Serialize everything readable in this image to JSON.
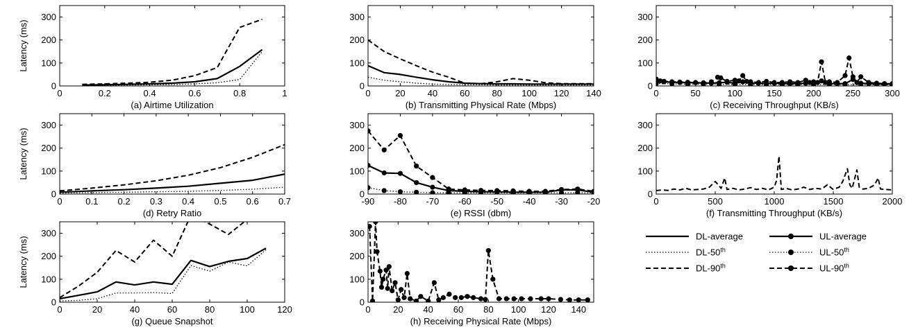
{
  "ylabel": "Latency (ms)",
  "legend": {
    "placement": "bottom-right",
    "entries": [
      {
        "name": "DL-average",
        "style": "solid",
        "marker": false
      },
      {
        "name": "UL-average",
        "style": "solid",
        "marker": true
      },
      {
        "name": "DL-50",
        "sup": "th",
        "style": "dotted",
        "marker": false
      },
      {
        "name": "UL-50",
        "sup": "th",
        "style": "dotted",
        "marker": true
      },
      {
        "name": "DL-90",
        "sup": "th",
        "style": "dashed",
        "marker": false
      },
      {
        "name": "UL-90",
        "sup": "th",
        "style": "dashed",
        "marker": true
      }
    ]
  },
  "chart_data": [
    {
      "type": "line",
      "caption": "(a) Airtime Utilization",
      "xlim": [
        0,
        1
      ],
      "ylim": [
        0,
        350
      ],
      "xticks": [
        "0",
        "0.2",
        "0.4",
        "0.6",
        "0.8",
        "1"
      ],
      "yticks": [
        "0",
        "100",
        "200",
        "300"
      ],
      "grid": false,
      "series": [
        {
          "name": "DL-average",
          "style": "solid",
          "marker": false,
          "x": [
            0.1,
            0.2,
            0.3,
            0.4,
            0.5,
            0.6,
            0.7,
            0.8,
            0.9
          ],
          "y": [
            4,
            5,
            7,
            9,
            12,
            18,
            32,
            85,
            158
          ]
        },
        {
          "name": "DL-50",
          "style": "dotted",
          "marker": false,
          "x": [
            0.1,
            0.2,
            0.3,
            0.4,
            0.5,
            0.6,
            0.7,
            0.8,
            0.9
          ],
          "y": [
            2,
            3,
            4,
            5,
            6,
            9,
            14,
            28,
            150
          ]
        },
        {
          "name": "DL-90",
          "style": "dashed",
          "marker": false,
          "x": [
            0.1,
            0.2,
            0.3,
            0.4,
            0.5,
            0.6,
            0.7,
            0.8,
            0.9
          ],
          "y": [
            7,
            9,
            12,
            16,
            25,
            45,
            80,
            255,
            290
          ]
        }
      ]
    },
    {
      "type": "line",
      "caption": "(b) Transmitting Physical Rate (Mbps)",
      "xlim": [
        0,
        140
      ],
      "ylim": [
        0,
        350
      ],
      "xticks": [
        "0",
        "20",
        "40",
        "60",
        "80",
        "100",
        "120",
        "140"
      ],
      "yticks": [
        "0",
        "100",
        "200",
        "300"
      ],
      "grid": false,
      "series": [
        {
          "name": "DL-average",
          "style": "solid",
          "marker": false,
          "x": [
            0,
            10,
            20,
            30,
            40,
            50,
            60,
            70,
            80,
            90,
            100,
            110,
            120,
            130,
            140
          ],
          "y": [
            88,
            58,
            50,
            38,
            27,
            18,
            12,
            10,
            9,
            9,
            8,
            8,
            8,
            8,
            8
          ]
        },
        {
          "name": "DL-50",
          "style": "dotted",
          "marker": false,
          "x": [
            0,
            10,
            20,
            30,
            40,
            50,
            60,
            70,
            80,
            90,
            100,
            110,
            120,
            130,
            140
          ],
          "y": [
            38,
            25,
            18,
            12,
            8,
            6,
            5,
            5,
            4,
            4,
            4,
            4,
            4,
            4,
            4
          ]
        },
        {
          "name": "DL-90",
          "style": "dashed",
          "marker": false,
          "x": [
            0,
            10,
            20,
            30,
            40,
            50,
            60,
            70,
            80,
            90,
            100,
            110,
            120,
            130,
            140
          ],
          "y": [
            200,
            150,
            118,
            88,
            60,
            38,
            12,
            10,
            18,
            32,
            25,
            14,
            10,
            10,
            10
          ]
        }
      ]
    },
    {
      "type": "line",
      "caption": "(c) Receiving Throughput (KB/s)",
      "xlim": [
        0,
        300
      ],
      "ylim": [
        0,
        350
      ],
      "xticks": [
        "0",
        "50",
        "100",
        "150",
        "200",
        "250",
        "300"
      ],
      "yticks": [
        "0",
        "100",
        "200",
        "300"
      ],
      "grid": false,
      "series": [
        {
          "name": "UL-average",
          "style": "solid",
          "marker": true,
          "x": [
            0,
            10,
            20,
            30,
            40,
            50,
            60,
            70,
            80,
            90,
            100,
            110,
            120,
            130,
            140,
            150,
            160,
            170,
            180,
            190,
            200,
            210,
            220,
            230,
            240,
            250,
            260,
            270,
            280,
            290,
            300
          ],
          "y": [
            20,
            18,
            16,
            15,
            15,
            14,
            13,
            12,
            14,
            16,
            12,
            18,
            12,
            12,
            10,
            12,
            10,
            10,
            10,
            12,
            12,
            22,
            10,
            10,
            10,
            28,
            12,
            10,
            8,
            8,
            8
          ]
        },
        {
          "name": "UL-50",
          "style": "dotted",
          "marker": true,
          "x": [
            0,
            20,
            40,
            60,
            80,
            100,
            120,
            140,
            160,
            180,
            200,
            220,
            240,
            260,
            280,
            300
          ],
          "y": [
            10,
            9,
            8,
            8,
            7,
            7,
            6,
            6,
            6,
            6,
            6,
            6,
            6,
            5,
            5,
            5
          ]
        },
        {
          "name": "UL-90",
          "style": "dashed",
          "marker": true,
          "x": [
            0,
            5,
            10,
            20,
            30,
            40,
            50,
            60,
            70,
            78,
            82,
            90,
            100,
            105,
            110,
            115,
            120,
            130,
            140,
            150,
            160,
            170,
            180,
            190,
            195,
            200,
            205,
            210,
            215,
            220,
            230,
            240,
            245,
            250,
            255,
            260,
            270,
            280,
            290,
            300
          ],
          "y": [
            30,
            22,
            20,
            18,
            17,
            16,
            15,
            14,
            18,
            38,
            35,
            20,
            25,
            22,
            45,
            20,
            18,
            15,
            20,
            15,
            15,
            18,
            15,
            25,
            15,
            18,
            15,
            105,
            15,
            18,
            15,
            45,
            122,
            40,
            15,
            40,
            15,
            12,
            10,
            10
          ]
        }
      ]
    },
    {
      "type": "line",
      "caption": "(d) Retry Ratio",
      "xlim": [
        0,
        0.7
      ],
      "ylim": [
        0,
        350
      ],
      "xticks": [
        "0",
        "0.1",
        "0.2",
        "0.3",
        "0.4",
        "0.5",
        "0.6",
        "0.7"
      ],
      "yticks": [
        "0",
        "100",
        "200",
        "300"
      ],
      "grid": false,
      "series": [
        {
          "name": "DL-average",
          "style": "solid",
          "marker": false,
          "x": [
            0,
            0.1,
            0.2,
            0.3,
            0.4,
            0.5,
            0.6,
            0.7
          ],
          "y": [
            8,
            14,
            19,
            26,
            34,
            47,
            60,
            87
          ]
        },
        {
          "name": "DL-50",
          "style": "dotted",
          "marker": false,
          "x": [
            0,
            0.1,
            0.2,
            0.3,
            0.4,
            0.5,
            0.6,
            0.7
          ],
          "y": [
            4,
            6,
            8,
            10,
            12,
            16,
            21,
            30
          ]
        },
        {
          "name": "DL-90",
          "style": "dashed",
          "marker": false,
          "x": [
            0,
            0.1,
            0.2,
            0.3,
            0.4,
            0.5,
            0.6,
            0.7
          ],
          "y": [
            14,
            26,
            40,
            58,
            82,
            115,
            160,
            215
          ]
        }
      ]
    },
    {
      "type": "line",
      "caption": "(e) RSSI (dbm)",
      "xlim": [
        -90,
        -20
      ],
      "ylim": [
        0,
        350
      ],
      "xticks": [
        "-90",
        "-80",
        "-70",
        "-60",
        "-50",
        "-40",
        "-30",
        "-20"
      ],
      "yticks": [
        "0",
        "100",
        "200",
        "300"
      ],
      "grid": false,
      "series": [
        {
          "name": "UL-average",
          "style": "solid",
          "marker": true,
          "x": [
            -90,
            -85,
            -80,
            -75,
            -70,
            -65,
            -60,
            -55,
            -50,
            -45,
            -40,
            -35,
            -30,
            -25,
            -20
          ],
          "y": [
            125,
            92,
            90,
            50,
            30,
            15,
            12,
            10,
            10,
            8,
            8,
            8,
            18,
            18,
            8
          ]
        },
        {
          "name": "UL-50",
          "style": "dotted",
          "marker": true,
          "x": [
            -90,
            -85,
            -80,
            -75,
            -70,
            -65,
            -60,
            -55,
            -50,
            -45,
            -40,
            -35,
            -30,
            -25,
            -20
          ],
          "y": [
            28,
            15,
            10,
            8,
            6,
            5,
            5,
            5,
            5,
            5,
            5,
            5,
            5,
            5,
            5
          ]
        },
        {
          "name": "UL-90",
          "style": "dashed",
          "marker": true,
          "x": [
            -90,
            -85,
            -80,
            -75,
            -70,
            -65,
            -60,
            -55,
            -50,
            -45,
            -40,
            -35,
            -30,
            -25,
            -20
          ],
          "y": [
            275,
            192,
            255,
            122,
            72,
            22,
            18,
            16,
            15,
            14,
            12,
            12,
            20,
            22,
            12
          ]
        }
      ]
    },
    {
      "type": "line",
      "caption": "(f) Transmitting Throughput (KB/s)",
      "xlim": [
        0,
        2000
      ],
      "ylim": [
        0,
        350
      ],
      "xticks": [
        "0",
        "500",
        "1000",
        "1500",
        "2000"
      ],
      "yticks": [
        "0",
        "100",
        "200",
        "300"
      ],
      "grid": false,
      "series": [
        {
          "name": "DL-90",
          "style": "dashed",
          "marker": false,
          "x": [
            0,
            50,
            100,
            150,
            200,
            250,
            300,
            350,
            400,
            450,
            480,
            500,
            550,
            580,
            600,
            650,
            700,
            750,
            800,
            850,
            900,
            950,
            1000,
            1020,
            1040,
            1060,
            1100,
            1150,
            1200,
            1250,
            1300,
            1350,
            1400,
            1450,
            1500,
            1550,
            1580,
            1620,
            1640,
            1660,
            1700,
            1720,
            1750,
            1800,
            1850,
            1880,
            1900,
            1950,
            2000
          ],
          "y": [
            15,
            18,
            16,
            22,
            18,
            25,
            18,
            20,
            22,
            30,
            45,
            55,
            25,
            70,
            20,
            25,
            18,
            22,
            28,
            20,
            25,
            18,
            30,
            60,
            165,
            20,
            25,
            18,
            22,
            30,
            20,
            25,
            22,
            40,
            20,
            30,
            55,
            110,
            40,
            25,
            105,
            30,
            22,
            25,
            40,
            70,
            22,
            20,
            18
          ]
        }
      ]
    },
    {
      "type": "line",
      "caption": "(g) Queue Snapshot",
      "xlim": [
        0,
        120
      ],
      "ylim": [
        0,
        350
      ],
      "xticks": [
        "0",
        "20",
        "40",
        "60",
        "80",
        "100",
        "120"
      ],
      "yticks": [
        "0",
        "100",
        "200",
        "300"
      ],
      "grid": false,
      "series": [
        {
          "name": "DL-average",
          "style": "solid",
          "marker": false,
          "x": [
            0,
            10,
            20,
            30,
            40,
            50,
            60,
            70,
            80,
            90,
            100,
            110
          ],
          "y": [
            15,
            30,
            45,
            88,
            75,
            88,
            78,
            182,
            155,
            178,
            190,
            235
          ]
        },
        {
          "name": "DL-50",
          "style": "dotted",
          "marker": false,
          "x": [
            0,
            10,
            20,
            30,
            40,
            50,
            60,
            70,
            80,
            90,
            100,
            110
          ],
          "y": [
            5,
            8,
            15,
            40,
            40,
            42,
            38,
            160,
            135,
            175,
            158,
            228
          ]
        },
        {
          "name": "DL-90",
          "style": "dashed",
          "marker": false,
          "x": [
            0,
            10,
            20,
            30,
            40,
            50,
            60,
            70,
            80,
            90,
            100
          ],
          "y": [
            20,
            70,
            130,
            225,
            175,
            270,
            200,
            380,
            340,
            295,
            360
          ]
        }
      ]
    },
    {
      "type": "line",
      "caption": "(h) Receiving Physical Rate (Mbps)",
      "xlim": [
        0,
        150
      ],
      "ylim": [
        0,
        350
      ],
      "xticks": [
        "0",
        "20",
        "40",
        "60",
        "80",
        "100",
        "120",
        "140"
      ],
      "yticks": [
        "0",
        "100",
        "200",
        "300"
      ],
      "grid": false,
      "series": [
        {
          "name": "UL-90",
          "style": "dashed",
          "marker": true,
          "x": [
            1,
            3,
            5,
            6,
            8,
            9,
            10,
            12,
            13,
            14,
            16,
            18,
            20,
            22,
            24,
            26,
            28,
            32,
            35,
            40,
            44,
            47,
            50,
            54,
            58,
            62,
            66,
            70,
            75,
            78,
            80,
            83,
            87,
            92,
            97,
            102,
            108,
            115,
            120,
            128,
            134,
            140,
            146
          ],
          "y": [
            330,
            5,
            350,
            220,
            135,
            65,
            100,
            140,
            60,
            155,
            50,
            85,
            10,
            55,
            20,
            125,
            15,
            5,
            25,
            5,
            85,
            10,
            20,
            35,
            20,
            20,
            25,
            20,
            15,
            12,
            225,
            100,
            15,
            15,
            15,
            15,
            15,
            15,
            15,
            12,
            10,
            10,
            10
          ]
        }
      ]
    }
  ]
}
